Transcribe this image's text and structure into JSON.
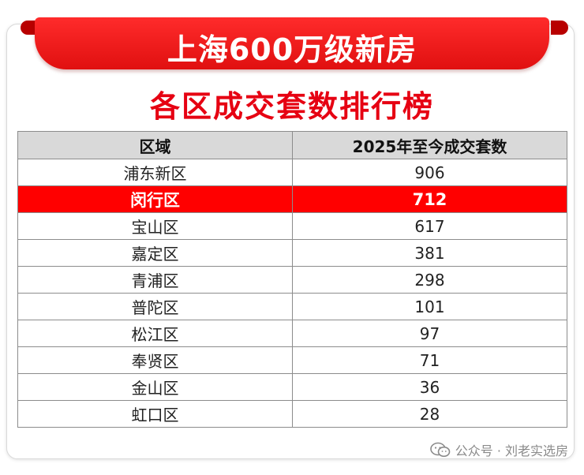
{
  "title": {
    "line1": "上海600万级新房",
    "line2": "各区成交套数排行榜"
  },
  "table": {
    "headers": [
      "区域",
      "2025年至今成交套数"
    ],
    "rows": [
      {
        "district": "浦东新区",
        "count": "906",
        "highlight": false
      },
      {
        "district": "闵行区",
        "count": "712",
        "highlight": true
      },
      {
        "district": "宝山区",
        "count": "617",
        "highlight": false
      },
      {
        "district": "嘉定区",
        "count": "381",
        "highlight": false
      },
      {
        "district": "青浦区",
        "count": "298",
        "highlight": false
      },
      {
        "district": "普陀区",
        "count": "101",
        "highlight": false
      },
      {
        "district": "松江区",
        "count": "97",
        "highlight": false
      },
      {
        "district": "奉贤区",
        "count": "71",
        "highlight": false
      },
      {
        "district": "金山区",
        "count": "36",
        "highlight": false
      },
      {
        "district": "虹口区",
        "count": "28",
        "highlight": false
      }
    ]
  },
  "watermark": {
    "text": "公众号 · 刘老实选房",
    "icon": "wechat-icon"
  },
  "colors": {
    "accent_red": "#e60012",
    "highlight_row": "#ff0000",
    "header_gray": "#d9d9d9"
  }
}
